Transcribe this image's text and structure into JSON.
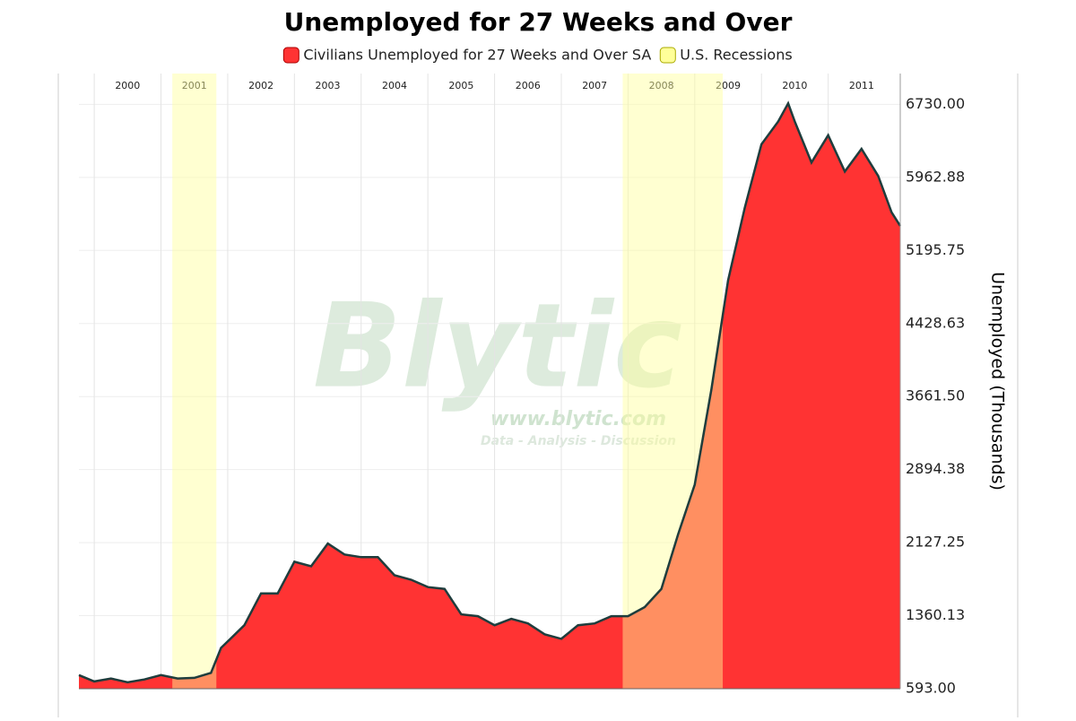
{
  "chart_data": {
    "type": "area",
    "title": "Unemployed for 27 Weeks and Over",
    "y_label": "Unemployed (Thousands)",
    "watermark": {
      "text": "Blytic",
      "url": "www.blytic.com",
      "tagline": "Data - Analysis - Discussion"
    },
    "x": [
      1999.77,
      2000.0,
      2000.25,
      2000.5,
      2000.75,
      2001.0,
      2001.25,
      2001.5,
      2001.75,
      2001.9,
      2002.25,
      2002.5,
      2002.75,
      2003.0,
      2003.25,
      2003.5,
      2003.75,
      2004.0,
      2004.25,
      2004.5,
      2004.75,
      2005.0,
      2005.25,
      2005.5,
      2005.75,
      2006.0,
      2006.25,
      2006.5,
      2006.75,
      2007.0,
      2007.25,
      2007.5,
      2007.75,
      2008.0,
      2008.25,
      2008.5,
      2008.75,
      2009.0,
      2009.25,
      2009.5,
      2009.75,
      2010.0,
      2010.25,
      2010.4,
      2010.5,
      2010.75,
      2011.0,
      2011.25,
      2011.5,
      2011.75,
      2011.95,
      2012.08
    ],
    "series": [
      {
        "name": "Civilians Unemployed for 27 Weeks and Over SA",
        "color": "#ff3333",
        "line_color": "#1f3d3d",
        "values": [
          736,
          669,
          700,
          660,
          690,
          736,
          700,
          707,
          760,
          1022,
          1260,
          1594,
          1594,
          1927,
          1880,
          2118,
          2003,
          1975,
          1975,
          1784,
          1737,
          1660,
          1641,
          1374,
          1355,
          1260,
          1327,
          1279,
          1165,
          1117,
          1260,
          1279,
          1355,
          1355,
          1450,
          1641,
          2213,
          2737,
          3738,
          4882,
          5644,
          6311,
          6549,
          6740,
          6549,
          6120,
          6406,
          6025,
          6263,
          5978,
          5597,
          5454
        ]
      }
    ],
    "recessions": {
      "name": "U.S. Recessions",
      "color": "#ffff99",
      "spans": [
        [
          2001.17,
          2001.83
        ],
        [
          2007.92,
          2009.42
        ]
      ]
    },
    "xlim": [
      1999.77,
      2012.08
    ],
    "xticks": [
      2000,
      2001,
      2002,
      2003,
      2004,
      2005,
      2006,
      2007,
      2008,
      2009,
      2010,
      2011
    ],
    "ylim": [
      593,
      7054
    ],
    "yticks": [
      {
        "value": 593,
        "label": "593.00"
      },
      {
        "value": 1360.13,
        "label": "1360.13"
      },
      {
        "value": 2127.25,
        "label": "2127.25"
      },
      {
        "value": 2894.38,
        "label": "2894.38"
      },
      {
        "value": 3661.5,
        "label": "3661.50"
      },
      {
        "value": 4428.63,
        "label": "4428.63"
      },
      {
        "value": 5195.75,
        "label": "5195.75"
      },
      {
        "value": 5962.88,
        "label": "5962.88"
      },
      {
        "value": 6730,
        "label": "6730.00"
      }
    ],
    "grid": true
  }
}
